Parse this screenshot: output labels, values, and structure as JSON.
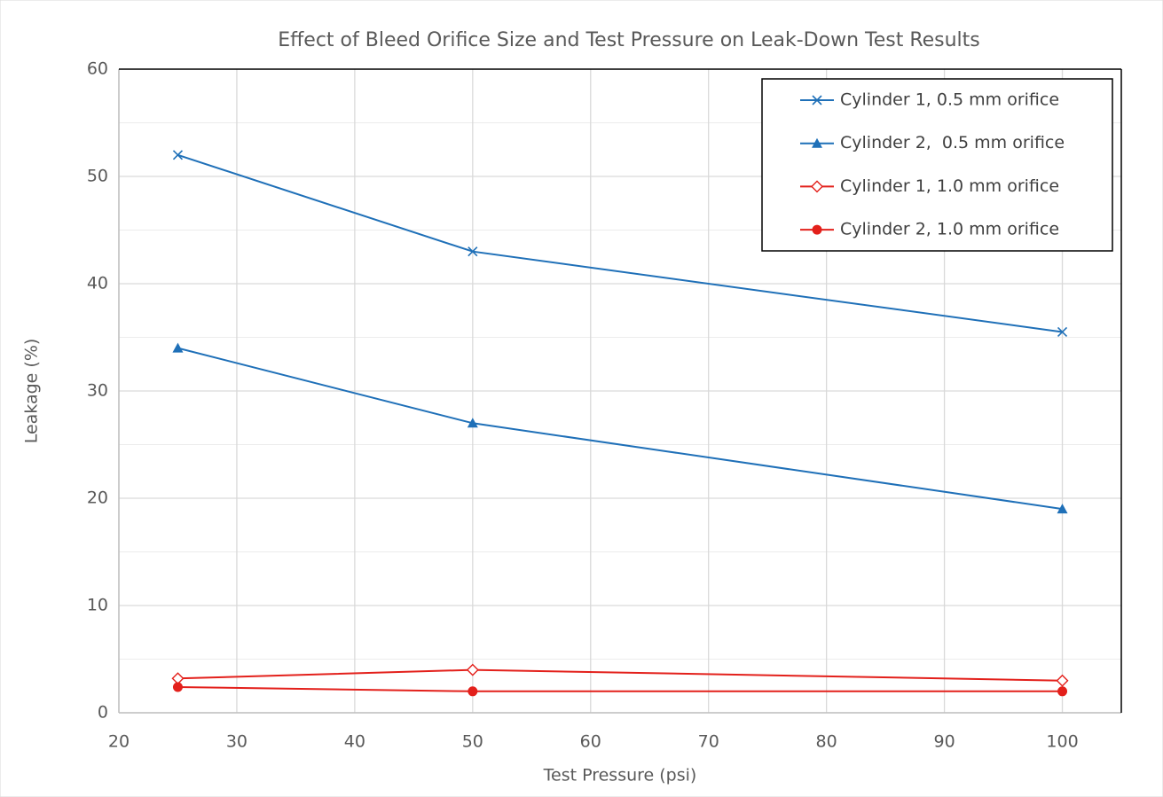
{
  "chart_data": {
    "type": "line",
    "title": "Effect of Bleed Orifice Size and Test Pressure on Leak-Down Test Results",
    "x_label": "Test Pressure (psi)",
    "y_label": "Leakage (%)",
    "x": [
      25,
      50,
      100
    ],
    "series": [
      {
        "name": "Cylinder 1, 0.5 mm orifice",
        "color": "#1f70b8",
        "marker": "x",
        "values": [
          52,
          43,
          35.5
        ]
      },
      {
        "name": "Cylinder 2,  0.5 mm orifice",
        "color": "#1f70b8",
        "marker": "triangle",
        "values": [
          34,
          27,
          19
        ]
      },
      {
        "name": "Cylinder 1, 1.0 mm orifice",
        "color": "#e3201b",
        "marker": "diamond-open",
        "values": [
          3.2,
          4,
          3
        ]
      },
      {
        "name": "Cylinder 2, 1.0 mm orifice",
        "color": "#e3201b",
        "marker": "circle",
        "values": [
          2.4,
          2,
          2
        ]
      }
    ],
    "xlim": [
      20,
      105
    ],
    "xticks": [
      20,
      30,
      40,
      50,
      60,
      70,
      80,
      90,
      100
    ],
    "ylim": [
      0,
      60
    ],
    "yticks": [
      0,
      10,
      20,
      30,
      40,
      50,
      60
    ],
    "grid": true,
    "minor_grid": true,
    "legend": "upper right"
  }
}
